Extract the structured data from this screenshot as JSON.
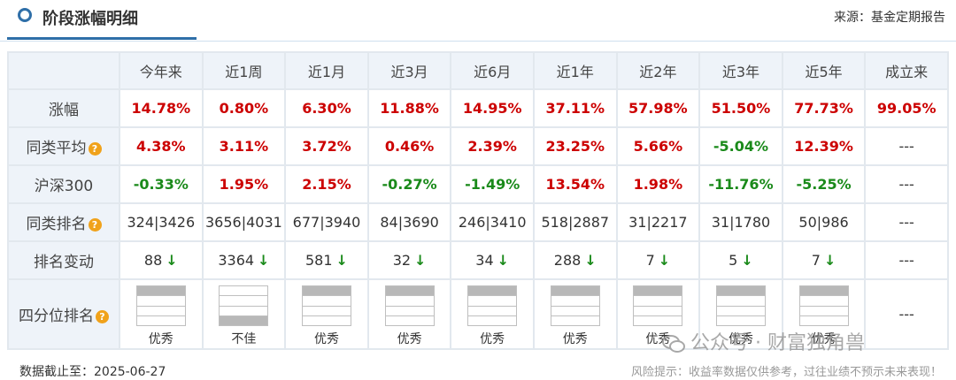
{
  "header": {
    "title": "阶段涨幅明细",
    "source": "来源：基金定期报告"
  },
  "table": {
    "columns": [
      "今年来",
      "近1周",
      "近1月",
      "近3月",
      "近6月",
      "近1年",
      "近2年",
      "近3年",
      "近5年",
      "成立来"
    ],
    "rows": {
      "growth": {
        "label": "涨幅",
        "values": [
          "14.78%",
          "0.80%",
          "6.30%",
          "11.88%",
          "14.95%",
          "37.11%",
          "57.98%",
          "51.50%",
          "77.73%",
          "99.05%"
        ],
        "colors": [
          "red",
          "red",
          "red",
          "red",
          "red",
          "red",
          "red",
          "red",
          "red",
          "red"
        ]
      },
      "peer_avg": {
        "label": "同类平均",
        "values": [
          "4.38%",
          "3.11%",
          "3.72%",
          "0.46%",
          "2.39%",
          "23.25%",
          "5.66%",
          "-5.04%",
          "12.39%",
          "---"
        ],
        "colors": [
          "red",
          "red",
          "red",
          "red",
          "red",
          "red",
          "red",
          "green",
          "red",
          "dash"
        ]
      },
      "hs300": {
        "label": "沪深300",
        "values": [
          "-0.33%",
          "1.95%",
          "2.15%",
          "-0.27%",
          "-1.49%",
          "13.54%",
          "1.98%",
          "-11.76%",
          "-5.25%",
          "---"
        ],
        "colors": [
          "green",
          "red",
          "red",
          "green",
          "green",
          "red",
          "red",
          "green",
          "green",
          "dash"
        ]
      },
      "peer_rank": {
        "label": "同类排名",
        "values": [
          "324|3426",
          "3656|4031",
          "677|3940",
          "84|3690",
          "246|3410",
          "518|2887",
          "31|2217",
          "31|1780",
          "50|986",
          "---"
        ]
      },
      "rank_change": {
        "label": "排名变动",
        "values": [
          "88",
          "3364",
          "581",
          "32",
          "34",
          "288",
          "7",
          "5",
          "7",
          "---"
        ],
        "arrow": "↓"
      },
      "quartile": {
        "label": "四分位排名",
        "labels": [
          "优秀",
          "不佳",
          "优秀",
          "优秀",
          "优秀",
          "优秀",
          "优秀",
          "优秀",
          "优秀"
        ],
        "level": [
          "top",
          "bottom",
          "top",
          "top",
          "top",
          "top",
          "top",
          "top",
          "top"
        ],
        "last": "---"
      }
    },
    "colors": {
      "red": "#cc0000",
      "green": "#1a8a1a"
    }
  },
  "footer": {
    "date": "数据截止至：2025-06-27",
    "disclaimer": "风险提示：收益率数据仅供参考，过往业绩不预示未来表现！"
  },
  "watermark": "公众号 · 财富独角兽",
  "icons": {
    "help": "question-icon",
    "title": "circle-icon",
    "arrow": "down-arrow-icon"
  }
}
